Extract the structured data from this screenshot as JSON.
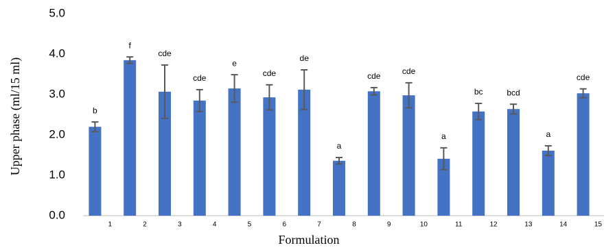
{
  "chart_data": {
    "type": "bar",
    "x_label": "Formulation",
    "y_label": "Upper phase (ml/15 ml)",
    "categories": [
      "1",
      "2",
      "3",
      "4",
      "5",
      "6",
      "7",
      "8",
      "9",
      "10",
      "11",
      "12",
      "13",
      "14",
      "15"
    ],
    "values": [
      2.2,
      3.85,
      3.07,
      2.85,
      3.15,
      2.93,
      3.12,
      1.36,
      3.08,
      2.98,
      1.41,
      2.58,
      2.64,
      1.61,
      3.03
    ],
    "errors": [
      0.12,
      0.08,
      0.66,
      0.27,
      0.34,
      0.31,
      0.49,
      0.08,
      0.09,
      0.31,
      0.27,
      0.2,
      0.12,
      0.12,
      0.11
    ],
    "annotations": [
      "b",
      "f",
      "cde",
      "cde",
      "e",
      "cde",
      "de",
      "a",
      "cde",
      "cde",
      "a",
      "bc",
      "bcd",
      "a",
      "cde"
    ],
    "color": "#4472c4",
    "error_color": "#595959",
    "ylim": [
      0,
      5
    ],
    "yticks": [
      {
        "value": 0,
        "label": "0.0"
      },
      {
        "value": 1,
        "label": "1.0"
      },
      {
        "value": 2,
        "label": "2.0"
      },
      {
        "value": 3,
        "label": "3.0"
      },
      {
        "value": 4,
        "label": "4.0"
      },
      {
        "value": 5,
        "label": "5.0"
      }
    ],
    "grid": false
  }
}
